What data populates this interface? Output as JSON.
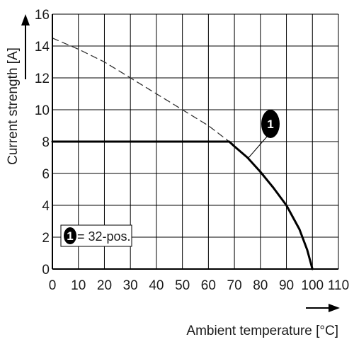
{
  "chart_data": {
    "type": "line",
    "xlabel": "Ambient temperature [°C]",
    "ylabel": "Current strength [A]",
    "xlim": [
      0,
      110
    ],
    "ylim": [
      0,
      16
    ],
    "xticks": [
      0,
      10,
      20,
      30,
      40,
      50,
      60,
      70,
      80,
      90,
      100,
      110
    ],
    "yticks": [
      0,
      2,
      4,
      6,
      8,
      10,
      12,
      14,
      16
    ],
    "grid": true,
    "series": [
      {
        "style": "dashed",
        "color": "#333333",
        "x": [
          0,
          10,
          20,
          30,
          40,
          50,
          60,
          68
        ],
        "y": [
          14.5,
          13.8,
          13.0,
          12.0,
          11.0,
          10.0,
          9.0,
          8.0
        ]
      },
      {
        "style": "solid",
        "color": "#000000",
        "x": [
          0,
          68,
          70,
          75,
          80,
          85,
          90,
          95,
          98,
          100
        ],
        "y": [
          8.0,
          8.0,
          7.7,
          7.0,
          6.1,
          5.1,
          4.0,
          2.5,
          1.2,
          0.0
        ]
      }
    ],
    "annotations": [
      {
        "marker": "1",
        "x": 75.5,
        "y": 7.0
      }
    ],
    "legend": {
      "marker": "1",
      "text": "= 32-pos."
    }
  }
}
